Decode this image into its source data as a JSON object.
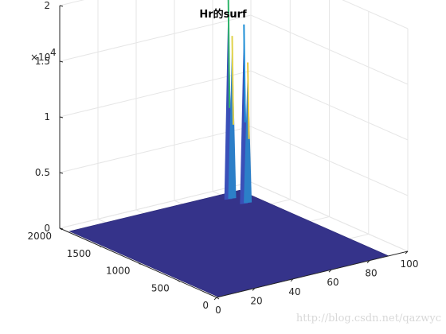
{
  "chart_data": {
    "type": "surface",
    "title": "Hr的surf",
    "z_exponent_label": "×10",
    "z_exponent_power": "4",
    "x_ticks": [
      {
        "value": 0,
        "label": "0"
      },
      {
        "value": 20,
        "label": "20"
      },
      {
        "value": 40,
        "label": "40"
      },
      {
        "value": 60,
        "label": "60"
      },
      {
        "value": 80,
        "label": "80"
      },
      {
        "value": 100,
        "label": "100"
      }
    ],
    "y_ticks": [
      {
        "value": 0,
        "label": "0"
      },
      {
        "value": 500,
        "label": "500"
      },
      {
        "value": 1000,
        "label": "1000"
      },
      {
        "value": 1500,
        "label": "1500"
      },
      {
        "value": 2000,
        "label": "2000"
      }
    ],
    "z_ticks": [
      {
        "value": 0,
        "label": "0"
      },
      {
        "value": 5000,
        "label": "0.5"
      },
      {
        "value": 10000,
        "label": "1"
      },
      {
        "value": 15000,
        "label": "1.5"
      },
      {
        "value": 20000,
        "label": "2"
      }
    ],
    "xlim": [
      0,
      100
    ],
    "ylim": [
      0,
      2000
    ],
    "zlim": [
      0,
      20000
    ],
    "surface_extent": {
      "x": [
        1,
        90
      ],
      "y": [
        1,
        1900
      ]
    },
    "base_level": 0,
    "peaks": [
      {
        "x": 80,
        "y": 1800,
        "z": 18000,
        "color": "#2fb56a"
      },
      {
        "x": 82,
        "y": 1800,
        "z": 14500,
        "color": "#e0d24a"
      },
      {
        "x": 82,
        "y": 1650,
        "z": 16000,
        "color": "#1f8fd6"
      },
      {
        "x": 84,
        "y": 1650,
        "z": 12500,
        "color": "#e8c83e"
      }
    ],
    "colormap": "parula",
    "surface_color": "#35338a",
    "grid": true
  },
  "watermark": "http://blog.csdn.net/qazwyc"
}
